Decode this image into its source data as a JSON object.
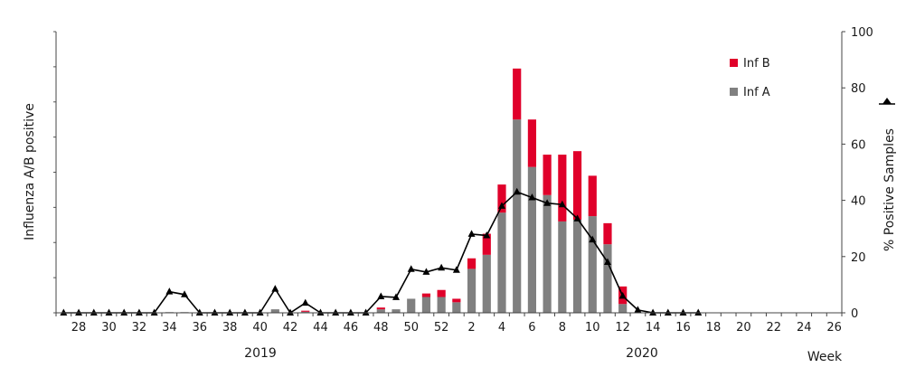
{
  "chart_data": {
    "type": "bar",
    "ylabel_left": "Influenza A/B positive",
    "ylabel_right": "% Positive Samples",
    "xlabel": "Week",
    "right_axis": {
      "ylim": [
        0,
        100
      ],
      "ticks": [
        "0",
        "20",
        "40",
        "60",
        "80",
        "100"
      ]
    },
    "left_axis": {
      "ylim": [
        0,
        8
      ],
      "tick_labels_shown": false
    },
    "year_labels": [
      {
        "label": "2019",
        "week_index": 10
      },
      {
        "label": "2020",
        "week_index": 33
      }
    ],
    "weeks": [
      27,
      28,
      29,
      30,
      31,
      32,
      33,
      34,
      35,
      36,
      37,
      38,
      39,
      40,
      41,
      42,
      43,
      44,
      45,
      46,
      47,
      48,
      49,
      50,
      51,
      52,
      1,
      2,
      3,
      4,
      5,
      6,
      7,
      8,
      9,
      10,
      11,
      12,
      13,
      14,
      15,
      16,
      17,
      18,
      19,
      20,
      21,
      22,
      23,
      24,
      25,
      26
    ],
    "x_tick_labels": [
      {
        "label": "28",
        "week_index": 1
      },
      {
        "label": "30",
        "week_index": 3
      },
      {
        "label": "32",
        "week_index": 5
      },
      {
        "label": "34",
        "week_index": 7
      },
      {
        "label": "36",
        "week_index": 9
      },
      {
        "label": "38",
        "week_index": 11
      },
      {
        "label": "40",
        "week_index": 13
      },
      {
        "label": "42",
        "week_index": 15
      },
      {
        "label": "44",
        "week_index": 17
      },
      {
        "label": "46",
        "week_index": 19
      },
      {
        "label": "48",
        "week_index": 21
      },
      {
        "label": "50",
        "week_index": 23
      },
      {
        "label": "52",
        "week_index": 25
      },
      {
        "label": "2",
        "week_index": 27
      },
      {
        "label": "4",
        "week_index": 29
      },
      {
        "label": "6",
        "week_index": 31
      },
      {
        "label": "8",
        "week_index": 33
      },
      {
        "label": "10",
        "week_index": 35
      },
      {
        "label": "12",
        "week_index": 37
      },
      {
        "label": "14",
        "week_index": 39
      },
      {
        "label": "16",
        "week_index": 41
      },
      {
        "label": "18",
        "week_index": 43
      },
      {
        "label": "20",
        "week_index": 45
      },
      {
        "label": "22",
        "week_index": 47
      },
      {
        "label": "24",
        "week_index": 49
      },
      {
        "label": "26",
        "week_index": 51
      }
    ],
    "series": [
      {
        "name": "Inf A",
        "kind": "bar",
        "color": "#808080",
        "values": [
          0,
          0,
          0,
          0,
          0,
          0,
          0,
          0.02,
          0.02,
          0,
          0,
          0,
          0,
          0,
          0.1,
          0,
          0.03,
          0,
          0,
          0,
          0,
          0.1,
          0.1,
          0.4,
          0.45,
          0.45,
          0.3,
          1.25,
          1.65,
          2.85,
          5.5,
          4.15,
          3.35,
          2.6,
          2.65,
          2.75,
          1.95,
          0.25,
          0,
          0,
          0,
          0,
          0,
          0,
          0,
          0,
          0,
          0,
          0,
          0,
          0,
          0
        ]
      },
      {
        "name": "Inf B",
        "kind": "bar",
        "color": "#e0002a",
        "values": [
          0,
          0,
          0,
          0,
          0,
          0,
          0,
          0,
          0,
          0,
          0,
          0,
          0,
          0,
          0,
          0,
          0.03,
          0,
          0,
          0,
          0,
          0.05,
          0,
          0,
          0.1,
          0.2,
          0.1,
          0.3,
          0.6,
          0.8,
          1.45,
          1.35,
          1.15,
          1.9,
          1.95,
          1.15,
          0.6,
          0.5,
          0,
          0,
          0,
          0,
          0,
          0,
          0,
          0,
          0,
          0,
          0,
          0,
          0,
          0
        ]
      },
      {
        "name": "% Positive Samples",
        "kind": "line",
        "axis": "right",
        "color": "#000000",
        "marker": "triangle",
        "values": [
          0,
          0,
          0,
          0,
          0,
          0,
          0,
          7.5,
          6.5,
          0,
          0,
          0,
          0,
          0,
          8.5,
          0,
          3.5,
          0,
          0,
          0,
          0,
          5.8,
          5.5,
          15.5,
          14.5,
          16,
          15.2,
          28,
          27.5,
          38,
          43,
          41,
          39,
          38.5,
          33.5,
          26,
          18,
          6,
          1,
          0,
          0,
          0,
          0
        ]
      }
    ],
    "legend": {
      "position": "top-right",
      "entries": [
        "Inf B",
        "Inf A"
      ]
    },
    "grid": false
  }
}
